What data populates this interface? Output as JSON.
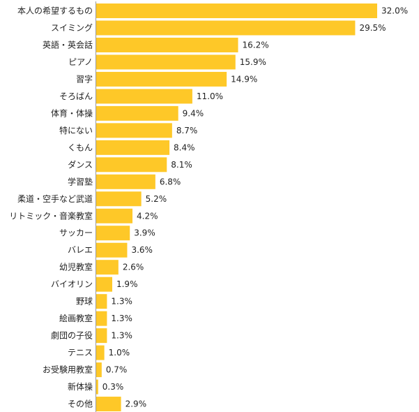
{
  "chart_data": {
    "type": "bar",
    "orientation": "horizontal",
    "categories": [
      "本人の希望するもの",
      "スイミング",
      "英語・英会話",
      "ピアノ",
      "習字",
      "そろばん",
      "体育・体操",
      "特にない",
      "くもん",
      "ダンス",
      "学習塾",
      "柔道・空手など武道",
      "リトミック・音楽教室",
      "サッカー",
      "バレエ",
      "幼児教室",
      "バイオリン",
      "野球",
      "絵画教室",
      "劇団の子役",
      "テニス",
      "お受験用教室",
      "新体操",
      "その他"
    ],
    "values": [
      32.0,
      29.5,
      16.2,
      15.9,
      14.9,
      11.0,
      9.4,
      8.7,
      8.4,
      8.1,
      6.8,
      5.2,
      4.2,
      3.9,
      3.6,
      2.6,
      1.9,
      1.3,
      1.3,
      1.3,
      1.0,
      0.7,
      0.3,
      2.9
    ],
    "value_labels": [
      "32.0%",
      "29.5%",
      "16.2%",
      "15.9%",
      "14.9%",
      "11.0%",
      "9.4%",
      "8.7%",
      "8.4%",
      "8.1%",
      "6.8%",
      "5.2%",
      "4.2%",
      "3.9%",
      "3.6%",
      "2.6%",
      "1.9%",
      "1.3%",
      "1.3%",
      "1.3%",
      "1.0%",
      "0.7%",
      "0.3%",
      "2.9%"
    ],
    "xlim": [
      0,
      32
    ],
    "unit": "%",
    "grid": false,
    "legend": "none",
    "bar_color": "#fec828",
    "axis_color": "#999999"
  }
}
